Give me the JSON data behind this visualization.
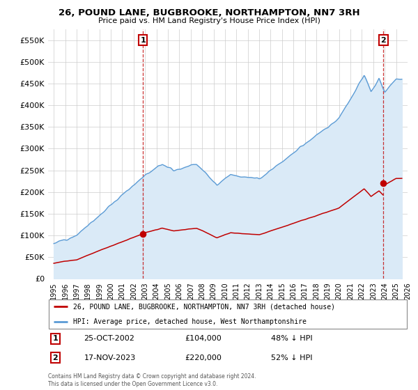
{
  "title": "26, POUND LANE, BUGBROOKE, NORTHAMPTON, NN7 3RH",
  "subtitle": "Price paid vs. HM Land Registry's House Price Index (HPI)",
  "legend_line1": "26, POUND LANE, BUGBROOKE, NORTHAMPTON, NN7 3RH (detached house)",
  "legend_line2": "HPI: Average price, detached house, West Northamptonshire",
  "footnote": "Contains HM Land Registry data © Crown copyright and database right 2024.\nThis data is licensed under the Open Government Licence v3.0.",
  "sale1_date": "25-OCT-2002",
  "sale1_price": 104000,
  "sale1_label": "48% ↓ HPI",
  "sale2_date": "17-NOV-2023",
  "sale2_price": 220000,
  "sale2_label": "52% ↓ HPI",
  "sale1_x": 2002.81,
  "sale2_x": 2023.88,
  "ylim": [
    0,
    575000
  ],
  "yticks": [
    0,
    50000,
    100000,
    150000,
    200000,
    250000,
    300000,
    350000,
    400000,
    450000,
    500000,
    550000
  ],
  "hpi_color": "#5b9bd5",
  "hpi_fill_color": "#daeaf7",
  "price_color": "#c00000",
  "background_color": "#ffffff",
  "grid_color": "#cccccc",
  "xmin": 1994.5,
  "xmax": 2026.0
}
